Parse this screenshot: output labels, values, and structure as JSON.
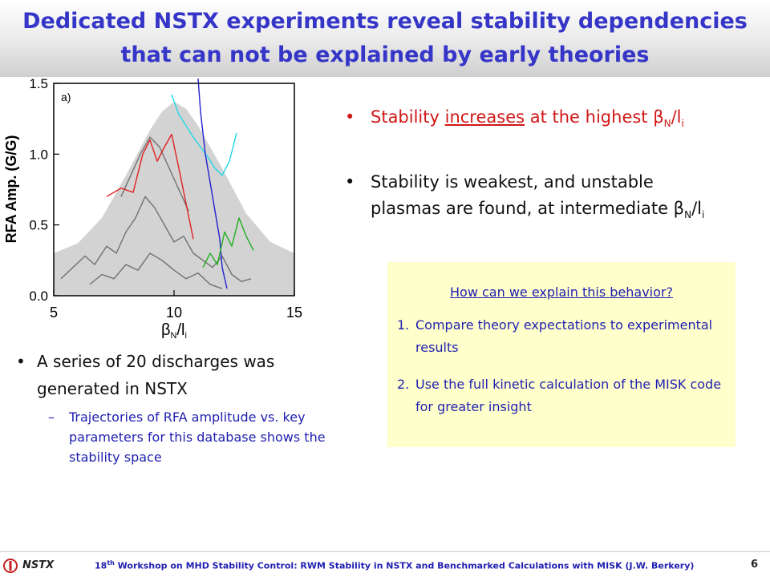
{
  "slide": {
    "title_line1": "Dedicated NSTX experiments reveal stability dependencies",
    "title_line2": "that can not be explained by early theories"
  },
  "right_bullets": {
    "b1_prefix": "Stability ",
    "b1_underlined": "increases",
    "b1_suffix": " at the highest β",
    "b1_sub_n": "N",
    "b1_slash": "/l",
    "b1_sub_i": "i",
    "b2_line1": "Stability is weakest, and unstable",
    "b2_line2_prefix": "plasmas are found, at intermediate β",
    "b2_sub_n": "N",
    "b2_slash": "/l",
    "b2_sub_i": "i"
  },
  "box": {
    "heading": "How can we explain this behavior?",
    "item1_num": "1.",
    "item1": "Compare theory expectations to experimental results",
    "item2_num": "2.",
    "item2": "Use the full kinetic calculation of the MISK code for greater insight"
  },
  "left_bullets": {
    "main": "A series of 20 discharges was generated in NSTX",
    "sub": "Trajectories of RFA amplitude vs. key parameters for this database shows the stability space"
  },
  "footer": {
    "logo_text": "NSTX",
    "sup": "th",
    "num": "18",
    "text": " Workshop on MHD Stability Control: RWM Stability in NSTX and Benchmarked Calculations with MISK (J.W. Berkery)",
    "page": "6"
  },
  "chart_data": {
    "type": "line",
    "panel_label": "a)",
    "xlabel_main": "β",
    "xlabel_sub1": "N",
    "xlabel_slash": "/l",
    "xlabel_sub2": "i",
    "ylabel": "RFA Amp. (G/G)",
    "xlim": [
      5,
      15
    ],
    "ylim": [
      0,
      1.5
    ],
    "xticks": [
      "5",
      "10",
      "15"
    ],
    "yticks": [
      "0.0",
      "0.5",
      "1.0",
      "1.5"
    ],
    "xtick_values": [
      5,
      10,
      15
    ],
    "ytick_values": [
      0,
      0.5,
      1.0,
      1.5
    ],
    "envelope": {
      "color": "#d3d3d3",
      "x": [
        5,
        6,
        7,
        8,
        9,
        9.5,
        10,
        10.5,
        11,
        12,
        13,
        14,
        15
      ],
      "y": [
        0.3,
        0.37,
        0.55,
        0.85,
        1.17,
        1.3,
        1.37,
        1.32,
        1.2,
        0.9,
        0.58,
        0.38,
        0.3
      ]
    },
    "series": [
      {
        "color": "#707070",
        "x": [
          5.3,
          5.8,
          6.3,
          6.7,
          7.2,
          7.6,
          8.0,
          8.4,
          8.8,
          9.2,
          9.6,
          10.0,
          10.4,
          10.8,
          11.2,
          11.6,
          12.0,
          12.4,
          12.8,
          13.2
        ],
        "y": [
          0.12,
          0.2,
          0.28,
          0.22,
          0.35,
          0.3,
          0.45,
          0.55,
          0.7,
          0.62,
          0.5,
          0.38,
          0.42,
          0.3,
          0.25,
          0.2,
          0.28,
          0.15,
          0.1,
          0.12
        ]
      },
      {
        "color": "#707070",
        "x": [
          6.5,
          7.0,
          7.5,
          8.0,
          8.5,
          9.0,
          9.5,
          10.0,
          10.5,
          11.0,
          11.5,
          12.0
        ],
        "y": [
          0.08,
          0.15,
          0.12,
          0.22,
          0.18,
          0.3,
          0.25,
          0.18,
          0.12,
          0.16,
          0.08,
          0.05
        ]
      },
      {
        "color": "#707070",
        "x": [
          7.8,
          8.2,
          8.6,
          9.0,
          9.4,
          9.8,
          10.2,
          10.6
        ],
        "y": [
          0.7,
          0.85,
          1.0,
          1.12,
          1.05,
          0.9,
          0.75,
          0.6
        ]
      },
      {
        "color": "#e02020",
        "x": [
          7.2,
          7.8,
          8.3,
          8.7,
          9.0,
          9.3,
          9.6,
          9.9,
          10.2,
          10.5,
          10.8
        ],
        "y": [
          0.7,
          0.76,
          0.73,
          1.0,
          1.1,
          0.95,
          1.05,
          1.14,
          0.9,
          0.65,
          0.4
        ]
      },
      {
        "color": "#20d8e8",
        "x": [
          9.9,
          10.2,
          10.5,
          10.8,
          11.1,
          11.4,
          11.7,
          12.0,
          12.3,
          12.6
        ],
        "y": [
          1.42,
          1.28,
          1.2,
          1.12,
          1.05,
          0.98,
          0.9,
          0.85,
          0.95,
          1.15
        ]
      },
      {
        "color": "#2020d0",
        "x": [
          11.0,
          11.1,
          11.3,
          11.5,
          11.7,
          11.9,
          12.0,
          12.2
        ],
        "y": [
          1.55,
          1.3,
          1.0,
          0.8,
          0.6,
          0.4,
          0.2,
          0.05
        ]
      },
      {
        "color": "#20b020",
        "x": [
          11.2,
          11.5,
          11.8,
          12.1,
          12.4,
          12.7,
          13.0,
          13.3
        ],
        "y": [
          0.2,
          0.3,
          0.22,
          0.45,
          0.35,
          0.55,
          0.42,
          0.32
        ]
      }
    ]
  }
}
